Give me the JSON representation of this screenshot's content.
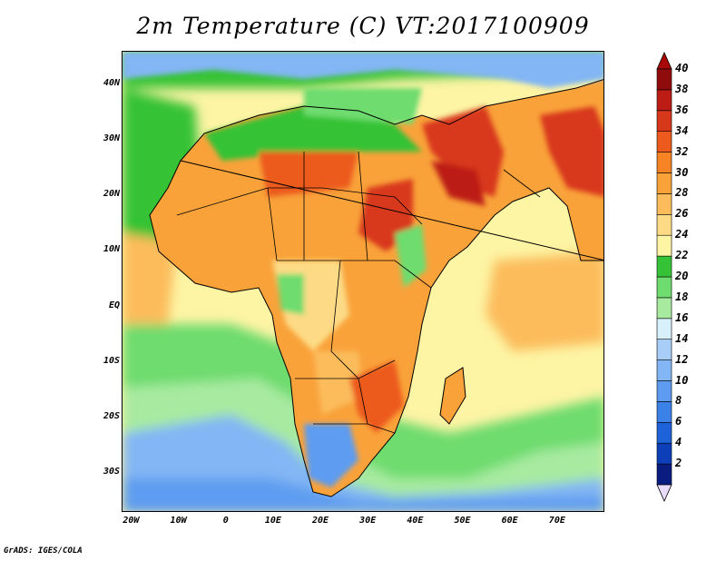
{
  "title": "2m Temperature (C) VT:2017100909",
  "credit": "GrADS: IGES/COLA",
  "map": {
    "lon_range": [
      -22,
      80
    ],
    "lat_range": [
      -37,
      46
    ],
    "lat_ticks": [
      {
        "value": 40,
        "label": "40N"
      },
      {
        "value": 30,
        "label": "30N"
      },
      {
        "value": 20,
        "label": "20N"
      },
      {
        "value": 10,
        "label": "10N"
      },
      {
        "value": 0,
        "label": "EQ"
      },
      {
        "value": -10,
        "label": "10S"
      },
      {
        "value": -20,
        "label": "20S"
      },
      {
        "value": -30,
        "label": "30S"
      }
    ],
    "lon_ticks": [
      {
        "value": -20,
        "label": "20W"
      },
      {
        "value": -10,
        "label": "10W"
      },
      {
        "value": 0,
        "label": "0"
      },
      {
        "value": 10,
        "label": "10E"
      },
      {
        "value": 20,
        "label": "20E"
      },
      {
        "value": 30,
        "label": "30E"
      },
      {
        "value": 40,
        "label": "40E"
      },
      {
        "value": 50,
        "label": "50E"
      },
      {
        "value": 60,
        "label": "60E"
      },
      {
        "value": 70,
        "label": "70E"
      }
    ]
  },
  "colorbar": {
    "levels": [
      "2",
      "4",
      "6",
      "8",
      "10",
      "12",
      "14",
      "16",
      "18",
      "20",
      "22",
      "24",
      "26",
      "28",
      "30",
      "32",
      "34",
      "36",
      "38",
      "40"
    ],
    "colors": [
      "#0a1c80",
      "#0c3fb8",
      "#1d62d8",
      "#3a82e8",
      "#5d9cf0",
      "#82b6f4",
      "#a8cef7",
      "#d8f0fb",
      "#a7eaa0",
      "#6edc6e",
      "#36c236",
      "#fdf4a4",
      "#fddb86",
      "#fcbc5c",
      "#f9a23a",
      "#f68424",
      "#ec5a1e",
      "#d8381a",
      "#bc1c14",
      "#900c0c"
    ],
    "under_color": "#e8dcfa",
    "over_color": "#a80808"
  }
}
